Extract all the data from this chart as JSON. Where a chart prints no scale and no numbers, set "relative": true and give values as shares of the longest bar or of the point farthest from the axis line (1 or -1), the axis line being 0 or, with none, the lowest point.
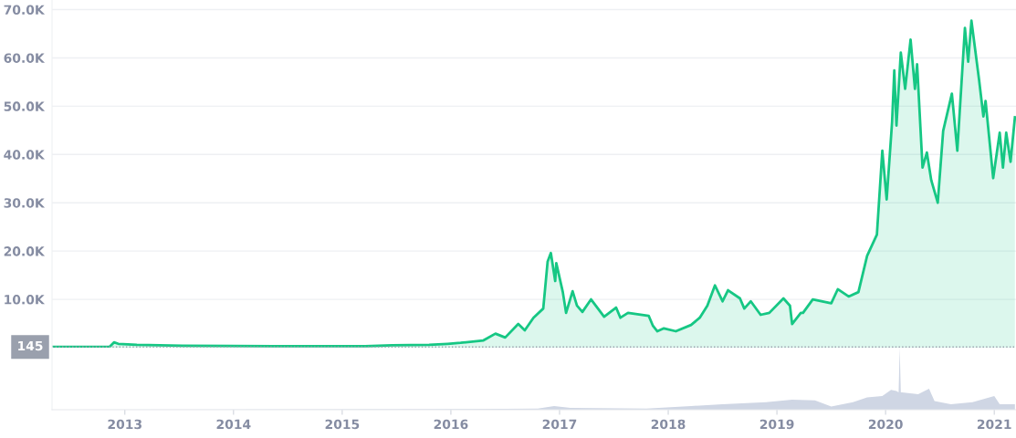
{
  "chart_data": [
    {
      "type": "area",
      "xlim": [
        2012.33,
        2021.2
      ],
      "ylim": [
        0,
        71900
      ],
      "yticks": [
        {
          "value": 10000,
          "label": "10.0K"
        },
        {
          "value": 20000,
          "label": "20.0K"
        },
        {
          "value": 30000,
          "label": "30.0K"
        },
        {
          "value": 40000,
          "label": "40.0K"
        },
        {
          "value": 50000,
          "label": "50.0K"
        },
        {
          "value": 60000,
          "label": "60.0K"
        },
        {
          "value": 70000,
          "label": "70.0K"
        }
      ],
      "grid": "y",
      "tick_labels": "y",
      "ref_lines": [
        {
          "axis": "y",
          "value": 145,
          "label": "145",
          "color": "#9aa0ad",
          "line_style": "dotted"
        }
      ],
      "series": [
        {
          "color": "#16c784",
          "x": [
            2012.33,
            2012.86,
            2012.9,
            2012.94,
            2013.11,
            2013.53,
            2014.37,
            2015.21,
            2015.46,
            2015.8,
            2015.97,
            2016.09,
            2016.3,
            2016.41,
            2016.5,
            2016.62,
            2016.68,
            2016.76,
            2016.85,
            2016.89,
            2016.92,
            2016.96,
            2016.97,
            2017.03,
            2017.06,
            2017.12,
            2017.16,
            2017.21,
            2017.29,
            2017.41,
            2017.52,
            2017.56,
            2017.63,
            2017.82,
            2017.86,
            2017.9,
            2017.96,
            2018.07,
            2018.21,
            2018.29,
            2018.36,
            2018.43,
            2018.5,
            2018.55,
            2018.66,
            2018.7,
            2018.76,
            2018.85,
            2018.93,
            2019.06,
            2019.12,
            2019.14,
            2019.22,
            2019.24,
            2019.33,
            2019.5,
            2019.56,
            2019.66,
            2019.75,
            2019.83,
            2019.92,
            2019.97,
            2020.01,
            2020.06,
            2020.08,
            2020.1,
            2020.14,
            2020.18,
            2020.23,
            2020.27,
            2020.29,
            2020.34,
            2020.38,
            2020.42,
            2020.48,
            2020.53,
            2020.61,
            2020.66,
            2020.73,
            2020.76,
            2020.79,
            2020.86,
            2020.9,
            2020.92,
            2020.99,
            2021.05,
            2021.08,
            2021.11,
            2021.15,
            2021.19
          ],
          "values": [
            145,
            200,
            1100,
            800,
            600,
            400,
            300,
            300,
            500,
            600,
            800,
            1000,
            1500,
            2900,
            2100,
            4900,
            3600,
            6200,
            8100,
            17800,
            19600,
            13800,
            17500,
            11500,
            7200,
            11700,
            8700,
            7400,
            10000,
            6400,
            8300,
            6200,
            7200,
            6600,
            4500,
            3400,
            4000,
            3400,
            4700,
            6200,
            8700,
            12900,
            9600,
            11900,
            10200,
            8100,
            9600,
            6800,
            7200,
            10200,
            8700,
            4900,
            7200,
            7200,
            10000,
            9200,
            12100,
            10600,
            11500,
            19000,
            23400,
            40800,
            30700,
            46800,
            57400,
            46000,
            61100,
            53600,
            63800,
            53600,
            58700,
            37300,
            40400,
            34700,
            30000,
            44900,
            52600,
            40800,
            66200,
            59200,
            67700,
            55500,
            47900,
            51100,
            35100,
            44500,
            37300,
            44500,
            38500,
            47700
          ]
        }
      ]
    },
    {
      "type": "area",
      "relative": true,
      "xlim": [
        2012.33,
        2021.2
      ],
      "tick_labels": "x",
      "xticks": [
        2013,
        2014,
        2015,
        2016,
        2017,
        2018,
        2019,
        2020,
        2021
      ],
      "series": [
        {
          "color": "#cfd6e4",
          "x": [
            2012.33,
            2016.2,
            2016.8,
            2016.95,
            2017.1,
            2017.8,
            2018.21,
            2018.5,
            2018.9,
            2019.14,
            2019.35,
            2019.5,
            2019.7,
            2019.83,
            2019.97,
            2020.05,
            2020.1,
            2020.12,
            2020.13,
            2020.14,
            2020.15,
            2020.3,
            2020.4,
            2020.45,
            2020.6,
            2020.8,
            2021.0,
            2021.05,
            2021.19
          ],
          "values": [
            0,
            0.01,
            0.02,
            0.06,
            0.03,
            0.02,
            0.06,
            0.09,
            0.12,
            0.16,
            0.15,
            0.05,
            0.12,
            0.2,
            0.22,
            0.32,
            0.3,
            0.28,
            1.0,
            0.28,
            0.28,
            0.25,
            0.34,
            0.14,
            0.09,
            0.12,
            0.22,
            0.09,
            0.09
          ]
        }
      ]
    }
  ]
}
